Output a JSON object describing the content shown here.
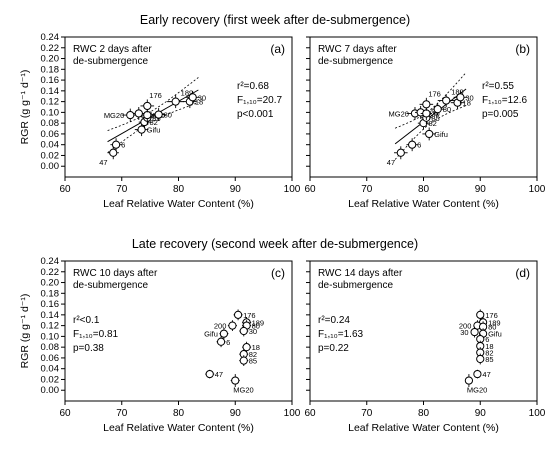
{
  "figure": {
    "early_title": "Early recovery  (first week after de-submergence)",
    "late_title": "Late recovery  (second week after de-submergence)"
  },
  "chart_data": [
    {
      "id": "a",
      "type": "scatter",
      "panel_letter": "(a)",
      "label_lines": [
        "RWC 2 days after",
        "de-submergence"
      ],
      "stats_lines": [
        "r²=0.68",
        "F₁,₁₀=20.7",
        "p<0.001"
      ],
      "xlabel": "Leaf Relative Water Content (%)",
      "ylabel": "RGR (g g⁻¹ d⁻¹)",
      "xlim": [
        60,
        100
      ],
      "ylim": [
        -0.02,
        0.24
      ],
      "xticks": [
        60,
        70,
        80,
        90,
        100
      ],
      "yticks": [
        0.0,
        0.02,
        0.04,
        0.06,
        0.08,
        0.1,
        0.12,
        0.14,
        0.16,
        0.18,
        0.2,
        0.22,
        0.24
      ],
      "show_yticklabels": true,
      "regression": true,
      "points": [
        {
          "label": "47",
          "x": 68.5,
          "y": 0.025,
          "xerr": 1.0,
          "yerr": 0.012
        },
        {
          "label": "6",
          "x": 69.0,
          "y": 0.04,
          "xerr": 1.0,
          "yerr": 0.012
        },
        {
          "label": "Gifu",
          "x": 73.5,
          "y": 0.068,
          "xerr": 1.2,
          "yerr": 0.012
        },
        {
          "label": "MG20",
          "x": 71.5,
          "y": 0.095,
          "xerr": 1.5,
          "yerr": 0.012
        },
        {
          "label": "82",
          "x": 74.0,
          "y": 0.082,
          "xerr": 1.0,
          "yerr": 0.012
        },
        {
          "label": "85",
          "x": 74.5,
          "y": 0.09,
          "xerr": 1.0,
          "yerr": 0.012
        },
        {
          "label": "30",
          "x": 73.0,
          "y": 0.098,
          "xerr": 1.0,
          "yerr": 0.012
        },
        {
          "label": "200",
          "x": 74.5,
          "y": 0.095,
          "xerr": 1.0,
          "yerr": 0.012
        },
        {
          "label": "176",
          "x": 74.5,
          "y": 0.112,
          "xerr": 1.2,
          "yerr": 0.012
        },
        {
          "label": "80",
          "x": 76.5,
          "y": 0.096,
          "xerr": 1.2,
          "yerr": 0.012
        },
        {
          "label": "189",
          "x": 79.5,
          "y": 0.12,
          "xerr": 1.5,
          "yerr": 0.012
        },
        {
          "label": "18",
          "x": 82.0,
          "y": 0.12,
          "xerr": 1.2,
          "yerr": 0.012
        },
        {
          "label": "30",
          "x": 82.5,
          "y": 0.128,
          "xerr": 1.2,
          "yerr": 0.012
        }
      ]
    },
    {
      "id": "b",
      "type": "scatter",
      "panel_letter": "(b)",
      "label_lines": [
        "RWC 7 days after",
        "de-submergence"
      ],
      "stats_lines": [
        "r²=0.55",
        "F₁,₁₀=12.6",
        "p=0.005"
      ],
      "xlabel": "Leaf Relative Water Content (%)",
      "ylabel": "",
      "xlim": [
        60,
        100
      ],
      "ylim": [
        -0.02,
        0.24
      ],
      "xticks": [
        60,
        70,
        80,
        90,
        100
      ],
      "yticks": [
        0.0,
        0.02,
        0.04,
        0.06,
        0.08,
        0.1,
        0.12,
        0.14,
        0.16,
        0.18,
        0.2,
        0.22,
        0.24
      ],
      "show_yticklabels": false,
      "regression": true,
      "points": [
        {
          "label": "47",
          "x": 76.0,
          "y": 0.025,
          "xerr": 1.2,
          "yerr": 0.012
        },
        {
          "label": "6",
          "x": 78.0,
          "y": 0.04,
          "xerr": 1.0,
          "yerr": 0.012
        },
        {
          "label": "Gifu",
          "x": 81.0,
          "y": 0.06,
          "xerr": 1.2,
          "yerr": 0.012
        },
        {
          "label": "MG20",
          "x": 78.5,
          "y": 0.098,
          "xerr": 1.5,
          "yerr": 0.012
        },
        {
          "label": "82",
          "x": 80.0,
          "y": 0.08,
          "xerr": 1.0,
          "yerr": 0.012
        },
        {
          "label": "85",
          "x": 80.5,
          "y": 0.09,
          "xerr": 1.0,
          "yerr": 0.012
        },
        {
          "label": "200",
          "x": 79.5,
          "y": 0.1,
          "xerr": 1.0,
          "yerr": 0.012
        },
        {
          "label": "30",
          "x": 80.5,
          "y": 0.098,
          "xerr": 1.0,
          "yerr": 0.012
        },
        {
          "label": "176",
          "x": 80.5,
          "y": 0.115,
          "xerr": 1.2,
          "yerr": 0.012
        },
        {
          "label": "80",
          "x": 82.5,
          "y": 0.106,
          "xerr": 1.2,
          "yerr": 0.012
        },
        {
          "label": "189",
          "x": 84.0,
          "y": 0.122,
          "xerr": 1.5,
          "yerr": 0.012
        },
        {
          "label": "18",
          "x": 86.0,
          "y": 0.118,
          "xerr": 1.2,
          "yerr": 0.012
        },
        {
          "label": "30",
          "x": 86.5,
          "y": 0.128,
          "xerr": 1.2,
          "yerr": 0.012
        }
      ]
    },
    {
      "id": "c",
      "type": "scatter",
      "panel_letter": "(c)",
      "label_lines": [
        "RWC 10 days after",
        "de-submergence"
      ],
      "stats_lines": [
        "r²<0.1",
        "F₁,₁₀=0.81",
        "p=0.38"
      ],
      "xlabel": "Leaf Relative Water Content (%)",
      "ylabel": "RGR (g g⁻¹ d⁻¹)",
      "xlim": [
        60,
        100
      ],
      "ylim": [
        -0.02,
        0.24
      ],
      "xticks": [
        60,
        70,
        80,
        90,
        100
      ],
      "yticks": [
        0.0,
        0.02,
        0.04,
        0.06,
        0.08,
        0.1,
        0.12,
        0.14,
        0.16,
        0.18,
        0.2,
        0.22,
        0.24
      ],
      "show_yticklabels": true,
      "regression": false,
      "points": [
        {
          "label": "176",
          "x": 90.5,
          "y": 0.14,
          "xerr": 0.8,
          "yerr": 0.01
        },
        {
          "label": "189",
          "x": 92.0,
          "y": 0.126,
          "xerr": 0.8,
          "yerr": 0.01
        },
        {
          "label": "200",
          "x": 89.5,
          "y": 0.12,
          "xerr": 0.8,
          "yerr": 0.01
        },
        {
          "label": "80",
          "x": 92.0,
          "y": 0.12,
          "xerr": 0.8,
          "yerr": 0.01
        },
        {
          "label": "30",
          "x": 91.5,
          "y": 0.11,
          "xerr": 0.8,
          "yerr": 0.01
        },
        {
          "label": "Gifu",
          "x": 88.0,
          "y": 0.105,
          "xerr": 0.8,
          "yerr": 0.01
        },
        {
          "label": "6",
          "x": 87.5,
          "y": 0.09,
          "xerr": 0.8,
          "yerr": 0.01
        },
        {
          "label": "18",
          "x": 92.0,
          "y": 0.08,
          "xerr": 0.8,
          "yerr": 0.01
        },
        {
          "label": "82",
          "x": 91.5,
          "y": 0.067,
          "xerr": 0.8,
          "yerr": 0.01
        },
        {
          "label": "85",
          "x": 91.5,
          "y": 0.055,
          "xerr": 0.8,
          "yerr": 0.01
        },
        {
          "label": "47",
          "x": 85.5,
          "y": 0.03,
          "xerr": 0.8,
          "yerr": 0.008
        },
        {
          "label": "MG20",
          "x": 90.0,
          "y": 0.018,
          "xerr": 0.8,
          "yerr": 0.012
        }
      ]
    },
    {
      "id": "d",
      "type": "scatter",
      "panel_letter": "(d)",
      "label_lines": [
        "RWC 14 days after",
        "de-submergence"
      ],
      "stats_lines": [
        "r²=0.24",
        "F₁,₁₀=1.63",
        "p=0.22"
      ],
      "xlabel": "Leaf Relative Water Content (%)",
      "ylabel": "",
      "xlim": [
        60,
        100
      ],
      "ylim": [
        -0.02,
        0.24
      ],
      "xticks": [
        60,
        70,
        80,
        90,
        100
      ],
      "yticks": [
        0.0,
        0.02,
        0.04,
        0.06,
        0.08,
        0.1,
        0.12,
        0.14,
        0.16,
        0.18,
        0.2,
        0.22,
        0.24
      ],
      "show_yticklabels": false,
      "regression": false,
      "points": [
        {
          "label": "176",
          "x": 90.0,
          "y": 0.14,
          "xerr": 0.6,
          "yerr": 0.01
        },
        {
          "label": "189",
          "x": 90.5,
          "y": 0.126,
          "xerr": 0.6,
          "yerr": 0.01
        },
        {
          "label": "200",
          "x": 89.5,
          "y": 0.12,
          "xerr": 0.6,
          "yerr": 0.01
        },
        {
          "label": "80",
          "x": 90.5,
          "y": 0.118,
          "xerr": 0.6,
          "yerr": 0.01
        },
        {
          "label": "30",
          "x": 89.0,
          "y": 0.108,
          "xerr": 0.6,
          "yerr": 0.01
        },
        {
          "label": "Gifu",
          "x": 90.5,
          "y": 0.105,
          "xerr": 0.6,
          "yerr": 0.01
        },
        {
          "label": "6",
          "x": 90.0,
          "y": 0.095,
          "xerr": 0.6,
          "yerr": 0.01
        },
        {
          "label": "18",
          "x": 90.0,
          "y": 0.082,
          "xerr": 0.6,
          "yerr": 0.01
        },
        {
          "label": "82",
          "x": 90.0,
          "y": 0.07,
          "xerr": 0.6,
          "yerr": 0.01
        },
        {
          "label": "85",
          "x": 90.0,
          "y": 0.058,
          "xerr": 0.6,
          "yerr": 0.01
        },
        {
          "label": "47",
          "x": 89.5,
          "y": 0.03,
          "xerr": 0.6,
          "yerr": 0.008
        },
        {
          "label": "MG20",
          "x": 88.0,
          "y": 0.018,
          "xerr": 0.6,
          "yerr": 0.012
        }
      ]
    }
  ]
}
